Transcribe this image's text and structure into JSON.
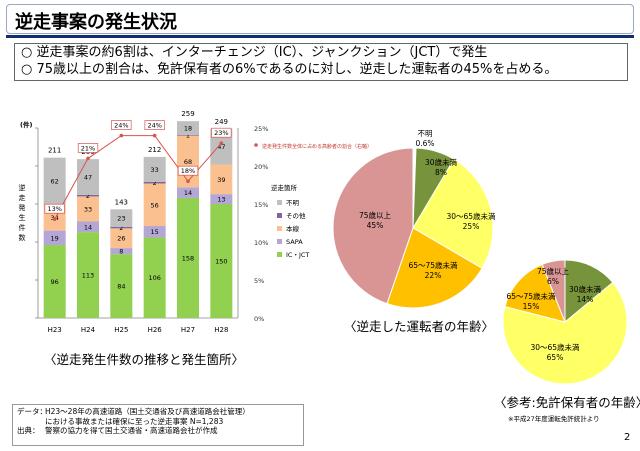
{
  "header": {
    "title": "逆走事案の発生状況",
    "bullets": [
      "○ 逆走事案の約6割は、インターチェンジ（IC）、ジャンクション（JCT）で発生",
      "○ 75歳以上の割合は、免許保有者の6%であるのに対し、逆走した運転者の45%を占める。"
    ]
  },
  "captions": {
    "bar": "〈逆走発生件数の推移と発生箇所〉",
    "pie_driver": "〈逆走した運転者の年齢〉",
    "pie_license": "〈参考:免許保有者の年齢〉"
  },
  "notes": [
    {
      "key": "データ：",
      "text": "H23～28年の高速道路（国土交通省及び高速道路会社管理）"
    },
    {
      "key": "",
      "text": "における事故または確保に至った逆走事案  N=1,283"
    },
    {
      "key": "出典：",
      "text": "警察の協力を得て国土交通省・高速道路会社が作成"
    }
  ],
  "footnote": "※平成27年度運転免許統計より",
  "page_number": "2",
  "chart_data": [
    {
      "type": "bar",
      "stacked": true,
      "categories": [
        "H23",
        "H24",
        "H25",
        "H26",
        "H27",
        "H28"
      ],
      "series": [
        {
          "name": "IC・JCT",
          "values": [
            96,
            113,
            84,
            106,
            158,
            150
          ],
          "color": "#92d050"
        },
        {
          "name": "SAPA",
          "values": [
            19,
            14,
            8,
            15,
            14,
            13
          ],
          "color": "#b4a7d6"
        },
        {
          "name": "本線",
          "values": [
            34,
            33,
            26,
            56,
            68,
            39
          ],
          "color": "#fac090"
        },
        {
          "name": "その他",
          "values": [
            0,
            2,
            2,
            2,
            1,
            0
          ],
          "color": "#8064a2"
        },
        {
          "name": "不明",
          "values": [
            62,
            47,
            23,
            33,
            18,
            47
          ],
          "color": "#bfbfbf"
        }
      ],
      "totals": [
        211,
        209,
        143,
        212,
        259,
        249
      ],
      "share_line": {
        "name": "逆走発生件数全体に占める高齢者の割合（右軸）",
        "values": [
          13,
          21,
          24,
          24,
          18,
          23
        ],
        "labels": [
          "13%",
          "21%",
          "24%",
          "24%",
          "18%",
          "23%"
        ],
        "color": "#d9534f"
      },
      "ylabel_left": "逆走発生件数",
      "unit_left": "(件)",
      "ylim": [
        0,
        250
      ],
      "yticks": [
        0,
        50,
        100,
        150,
        200,
        250
      ],
      "y2lim": [
        0,
        25
      ],
      "y2ticks": [
        "0%",
        "5%",
        "10%",
        "15%",
        "20%",
        "25%"
      ],
      "legend_title": "逆走箇所",
      "legend": [
        "不明",
        "その他",
        "本線",
        "SAPA",
        "IC・JCT"
      ]
    },
    {
      "type": "pie",
      "labels": [
        "30歳未満",
        "30～65歳未満",
        "65～75歳未満",
        "75歳以上",
        "不明"
      ],
      "values": [
        8,
        25,
        22,
        45,
        0.6
      ],
      "colors": [
        "#77933c",
        "#ffff66",
        "#ffc000",
        "#d99594",
        "#ffffff"
      ]
    },
    {
      "type": "pie",
      "labels": [
        "30歳未満",
        "30～65歳未満",
        "65～75歳未満",
        "75歳以上"
      ],
      "values": [
        14,
        65,
        15,
        6
      ],
      "colors": [
        "#77933c",
        "#ffff66",
        "#ffc000",
        "#d99594"
      ]
    }
  ],
  "pie_labels": {
    "driver": [
      {
        "label": "30歳未満",
        "value": "8%"
      },
      {
        "label": "30～65歳未満",
        "value": "25%"
      },
      {
        "label": "65～75歳未満",
        "value": "22%"
      },
      {
        "label": "75歳以上",
        "value": "45%"
      },
      {
        "label": "不明",
        "value": "0.6%"
      }
    ],
    "license": [
      {
        "label": "30歳未満",
        "value": "14%"
      },
      {
        "label": "30～65歳未満",
        "value": "65%"
      },
      {
        "label": "65～75歳未満",
        "value": "15%"
      },
      {
        "label": "75歳以上",
        "value": "6%"
      }
    ]
  }
}
